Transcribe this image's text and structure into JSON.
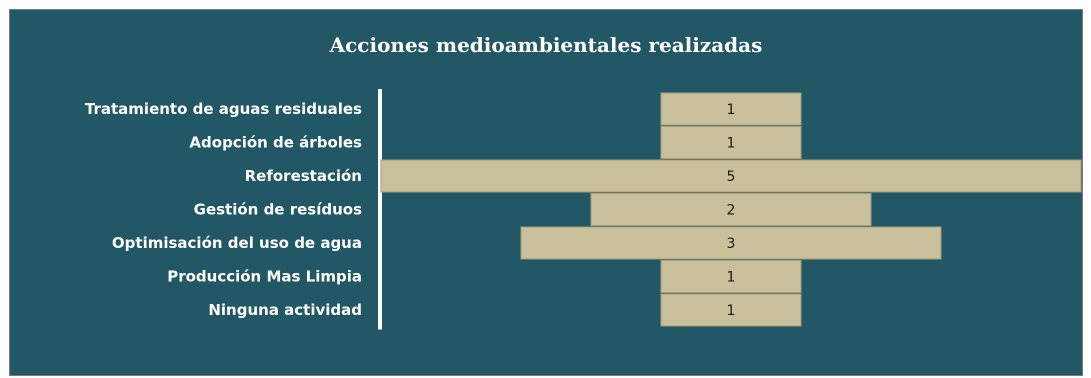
{
  "chart_data": {
    "type": "bar",
    "orientation": "horizontal",
    "layout": "centered",
    "title": "Acciones medioambientales realizadas",
    "categories": [
      "Tratamiento de aguas residuales",
      "Adopción de árboles",
      "Reforestación",
      "Gestión de resíduos",
      "Optimisación del uso de agua",
      "Producción Mas Limpia",
      "Ninguna actividad"
    ],
    "values": [
      1,
      1,
      5,
      2,
      3,
      1,
      1
    ],
    "data_labels": [
      "1",
      "1",
      "5",
      "2",
      "3",
      "1",
      "1"
    ],
    "grid": false,
    "legend": "none",
    "colors": {
      "background": "#225866",
      "bar": "#c9bf9a",
      "bar_stroke": "#a59c7a",
      "axis": "#ffffff",
      "text": "#ffffff"
    }
  }
}
